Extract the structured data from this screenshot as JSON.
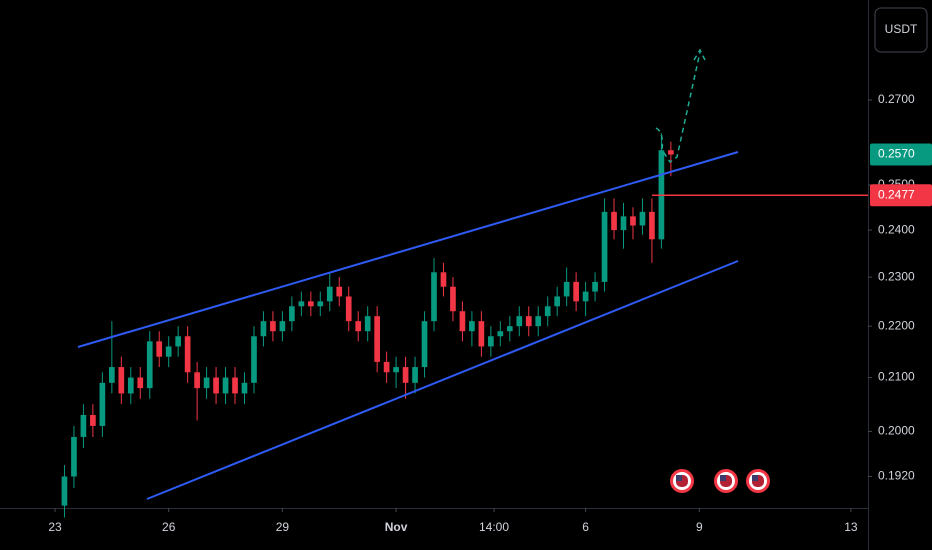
{
  "chart_data": {
    "type": "candlestick",
    "currency": "USDT",
    "log_scale": true,
    "up_color": "#089981",
    "down_color": "#f23645",
    "x": [
      0.25,
      0.5,
      0.75,
      1.0,
      1.25,
      1.5,
      1.75,
      2.0,
      2.25,
      2.5,
      2.75,
      3.0,
      3.25,
      3.5,
      3.75,
      4.0,
      4.25,
      4.5,
      4.75,
      5.0,
      5.25,
      5.5,
      5.75,
      6.0,
      6.25,
      6.5,
      6.75,
      7.0,
      7.25,
      7.5,
      7.75,
      8.0,
      8.25,
      8.5,
      8.75,
      9.0,
      9.25,
      9.5,
      9.75,
      10.0,
      10.25,
      10.5,
      10.75,
      11.0,
      11.25,
      11.5,
      11.75,
      12.0,
      12.25,
      12.5,
      12.75,
      13.0,
      13.25,
      13.5,
      13.75,
      14.0,
      14.25,
      14.5,
      14.75,
      15.0,
      15.25,
      15.5,
      15.75,
      16.0,
      16.25
    ],
    "open": [
      0.187,
      0.192,
      0.199,
      0.203,
      0.201,
      0.209,
      0.212,
      0.207,
      0.21,
      0.208,
      0.217,
      0.214,
      0.216,
      0.218,
      0.211,
      0.208,
      0.21,
      0.207,
      0.21,
      0.207,
      0.209,
      0.218,
      0.221,
      0.219,
      0.221,
      0.224,
      0.225,
      0.224,
      0.225,
      0.228,
      0.226,
      0.221,
      0.219,
      0.222,
      0.213,
      0.211,
      0.212,
      0.209,
      0.212,
      0.221,
      0.231,
      0.228,
      0.223,
      0.219,
      0.221,
      0.216,
      0.218,
      0.219,
      0.22,
      0.222,
      0.22,
      0.222,
      0.224,
      0.226,
      0.229,
      0.225,
      0.227,
      0.229,
      0.244,
      0.24,
      0.243,
      0.241,
      0.244,
      0.238,
      0.258
    ],
    "high": [
      0.194,
      0.201,
      0.205,
      0.205,
      0.211,
      0.221,
      0.214,
      0.212,
      0.212,
      0.219,
      0.219,
      0.218,
      0.22,
      0.22,
      0.213,
      0.212,
      0.212,
      0.212,
      0.212,
      0.211,
      0.22,
      0.223,
      0.223,
      0.223,
      0.226,
      0.227,
      0.227,
      0.227,
      0.231,
      0.23,
      0.228,
      0.223,
      0.224,
      0.224,
      0.215,
      0.214,
      0.214,
      0.214,
      0.223,
      0.234,
      0.233,
      0.23,
      0.225,
      0.223,
      0.223,
      0.22,
      0.221,
      0.222,
      0.224,
      0.224,
      0.224,
      0.226,
      0.228,
      0.232,
      0.231,
      0.229,
      0.231,
      0.247,
      0.247,
      0.246,
      0.245,
      0.247,
      0.247,
      0.262,
      0.26
    ],
    "low": [
      0.185,
      0.19,
      0.197,
      0.199,
      0.199,
      0.207,
      0.205,
      0.205,
      0.206,
      0.206,
      0.212,
      0.212,
      0.214,
      0.209,
      0.202,
      0.206,
      0.205,
      0.205,
      0.205,
      0.205,
      0.207,
      0.216,
      0.217,
      0.217,
      0.219,
      0.222,
      0.222,
      0.222,
      0.223,
      0.224,
      0.219,
      0.217,
      0.217,
      0.211,
      0.209,
      0.208,
      0.206,
      0.207,
      0.21,
      0.219,
      0.226,
      0.221,
      0.217,
      0.216,
      0.214,
      0.214,
      0.216,
      0.217,
      0.218,
      0.218,
      0.218,
      0.22,
      0.222,
      0.224,
      0.223,
      0.222,
      0.225,
      0.227,
      0.238,
      0.236,
      0.238,
      0.239,
      0.233,
      0.236,
      0.252
    ],
    "close": [
      0.192,
      0.199,
      0.203,
      0.201,
      0.209,
      0.212,
      0.207,
      0.21,
      0.208,
      0.217,
      0.214,
      0.216,
      0.218,
      0.211,
      0.208,
      0.21,
      0.207,
      0.21,
      0.207,
      0.209,
      0.218,
      0.221,
      0.219,
      0.221,
      0.224,
      0.225,
      0.224,
      0.225,
      0.228,
      0.226,
      0.221,
      0.219,
      0.222,
      0.213,
      0.211,
      0.212,
      0.209,
      0.212,
      0.221,
      0.231,
      0.228,
      0.223,
      0.219,
      0.221,
      0.216,
      0.218,
      0.219,
      0.22,
      0.222,
      0.22,
      0.222,
      0.224,
      0.226,
      0.229,
      0.225,
      0.227,
      0.229,
      0.244,
      0.24,
      0.243,
      0.241,
      0.244,
      0.238,
      0.258,
      0.257
    ],
    "xlim": [
      -1.451,
      21.451
    ],
    "xticks": [
      {
        "value": 0,
        "label": "23"
      },
      {
        "value": 3,
        "label": "26"
      },
      {
        "value": 6,
        "label": "29"
      },
      {
        "value": 9,
        "label": "Nov",
        "bold": true
      },
      {
        "value": 11.583,
        "label": "14:00"
      },
      {
        "value": 14,
        "label": "6"
      },
      {
        "value": 17,
        "label": "9"
      },
      {
        "value": 21,
        "label": "13"
      }
    ],
    "ylim": [
      0.1866,
      0.2956
    ],
    "yticks": [
      {
        "value": 0.27,
        "label": "0.2700"
      },
      {
        "value": 0.25,
        "label": "0.2500"
      },
      {
        "value": 0.24,
        "label": "0.2400"
      },
      {
        "value": 0.23,
        "label": "0.2300"
      },
      {
        "value": 0.22,
        "label": "0.2200"
      },
      {
        "value": 0.21,
        "label": "0.2100"
      },
      {
        "value": 0.2,
        "label": "0.2000"
      },
      {
        "value": 0.192,
        "label": "0.1920"
      }
    ],
    "price_tags": [
      {
        "value": 0.257,
        "label": "0.2570",
        "color": "#089981"
      },
      {
        "value": 0.2477,
        "label": "0.2477",
        "color": "#f23645"
      }
    ]
  }
}
